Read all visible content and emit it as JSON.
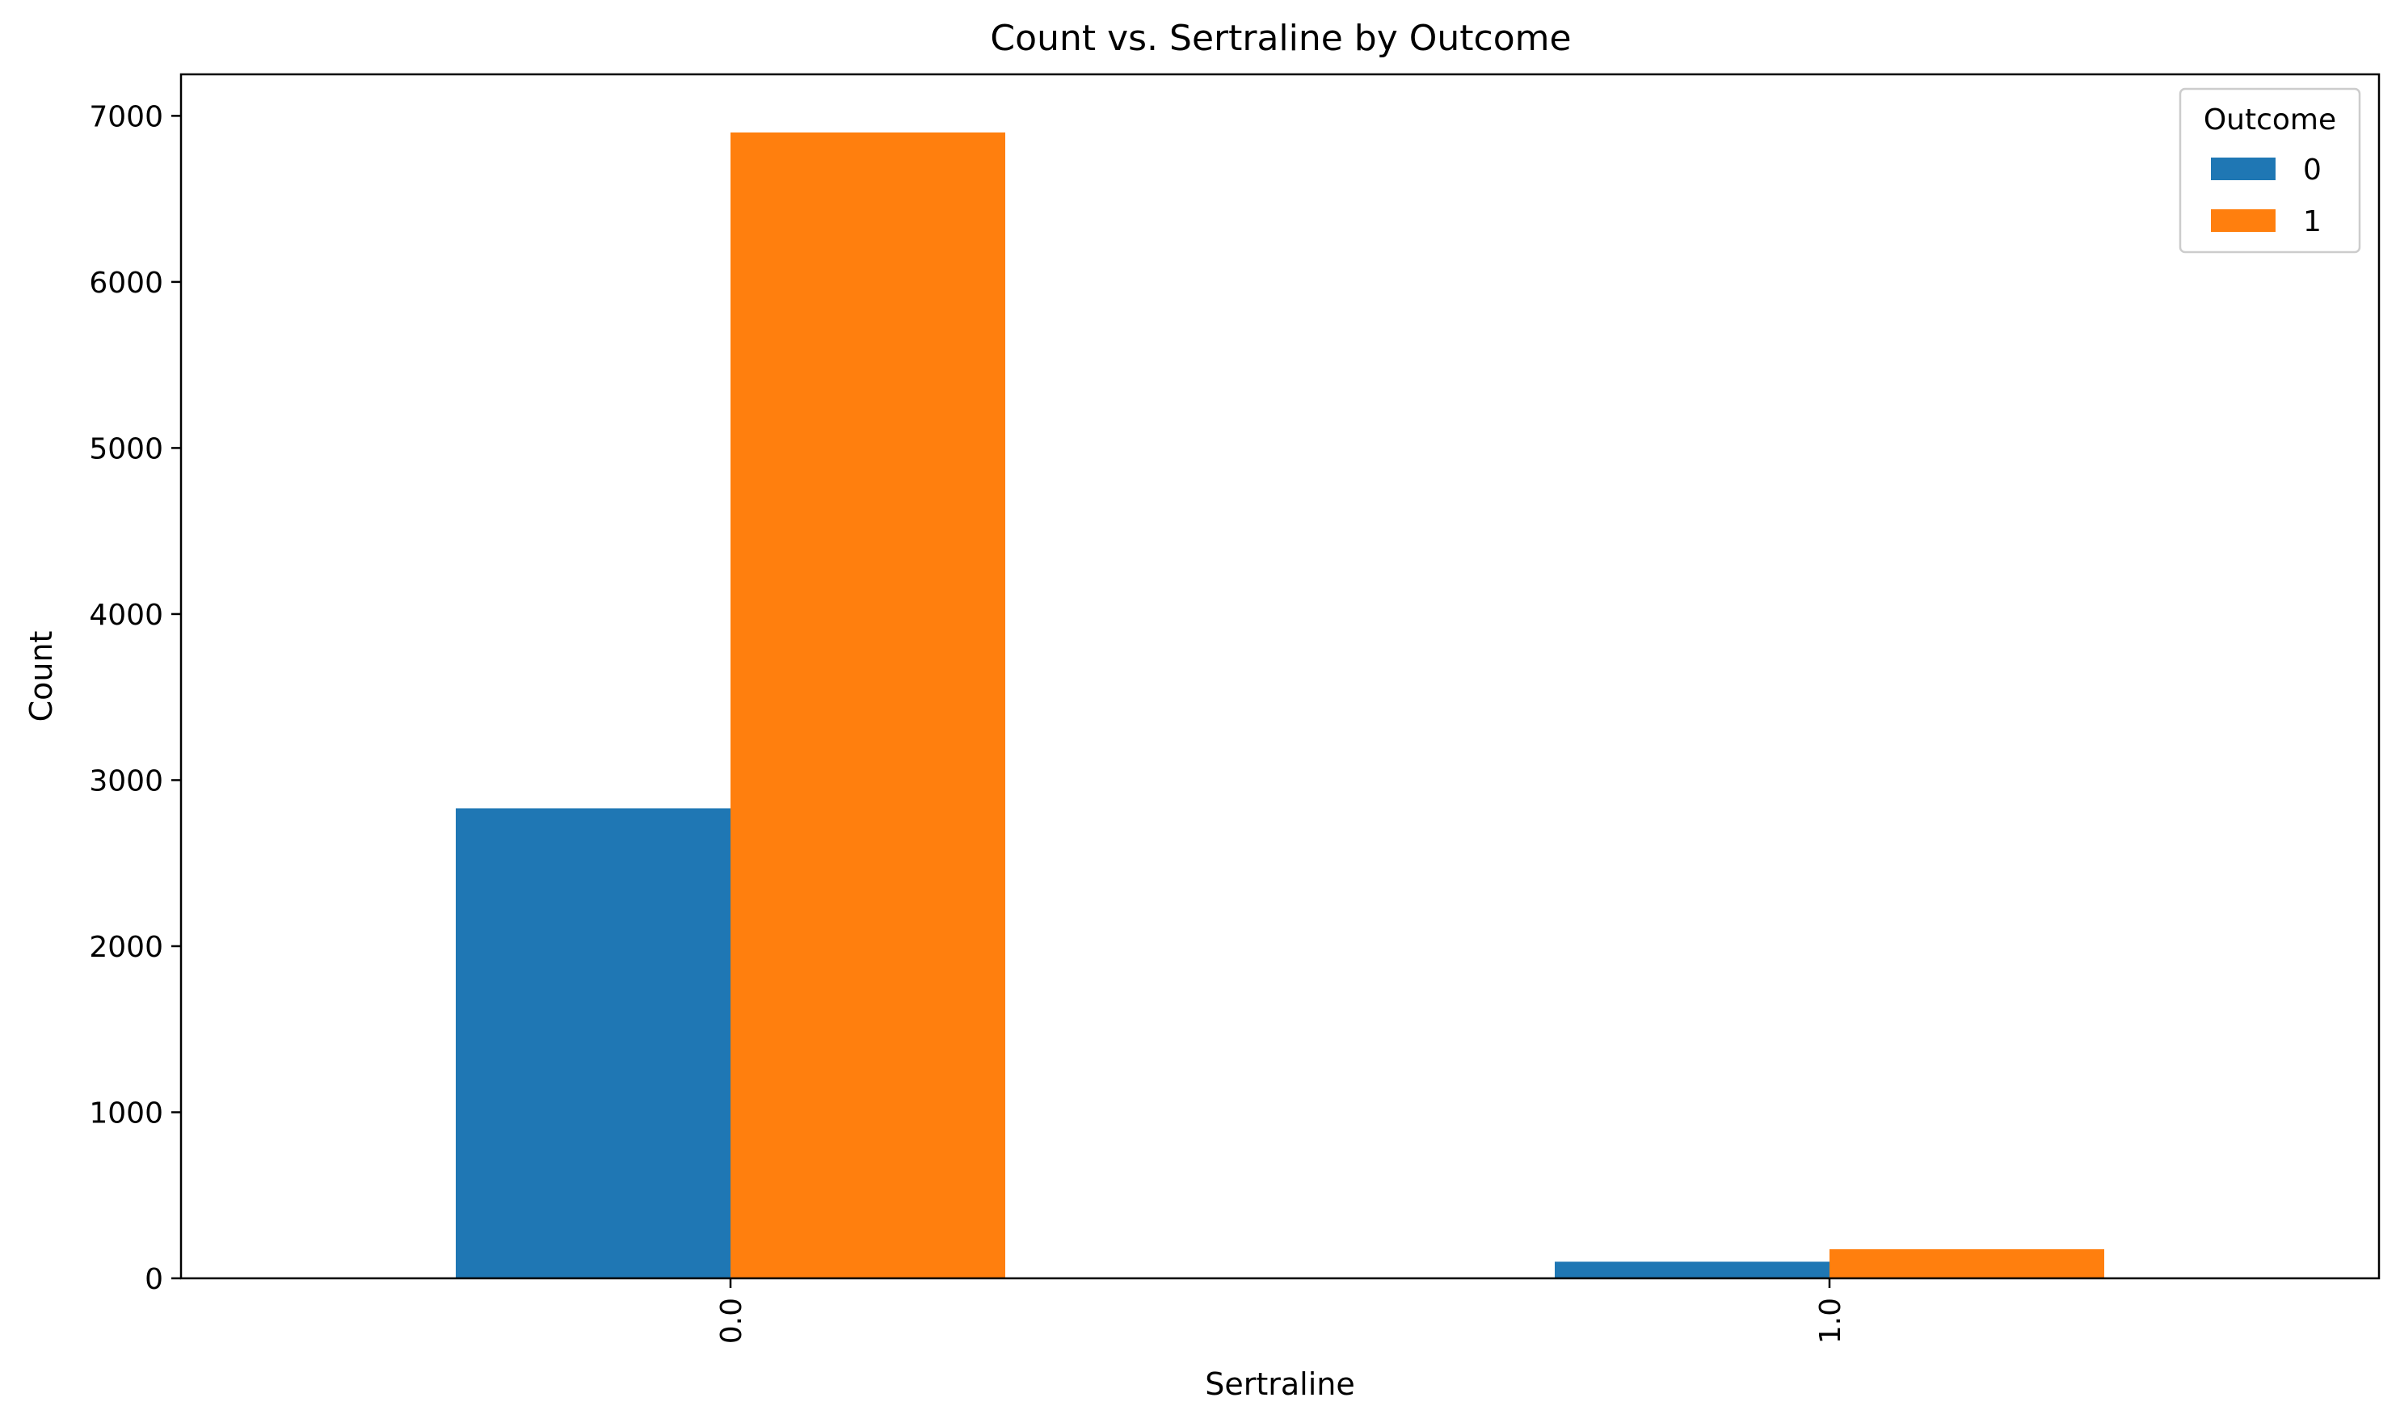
{
  "chart_data": {
    "type": "bar",
    "title": "Count vs. Sertraline by Outcome",
    "xlabel": "Sertraline",
    "ylabel": "Count",
    "categories": [
      "0.0",
      "1.0"
    ],
    "series": [
      {
        "name": "0",
        "color": "#1f77b4",
        "values": [
          2830,
          100
        ]
      },
      {
        "name": "1",
        "color": "#ff7f0e",
        "values": [
          6900,
          175
        ]
      }
    ],
    "ylim": [
      0,
      7250
    ],
    "yticks": [
      0,
      1000,
      2000,
      3000,
      4000,
      5000,
      6000,
      7000
    ],
    "ytick_labels": [
      "0",
      "1000",
      "2000",
      "3000",
      "4000",
      "5000",
      "6000",
      "7000"
    ],
    "xtick_rotation": "vertical",
    "grid": false,
    "legend": {
      "title": "Outcome",
      "placement": "top-right",
      "entries": [
        "0",
        "1"
      ]
    }
  }
}
